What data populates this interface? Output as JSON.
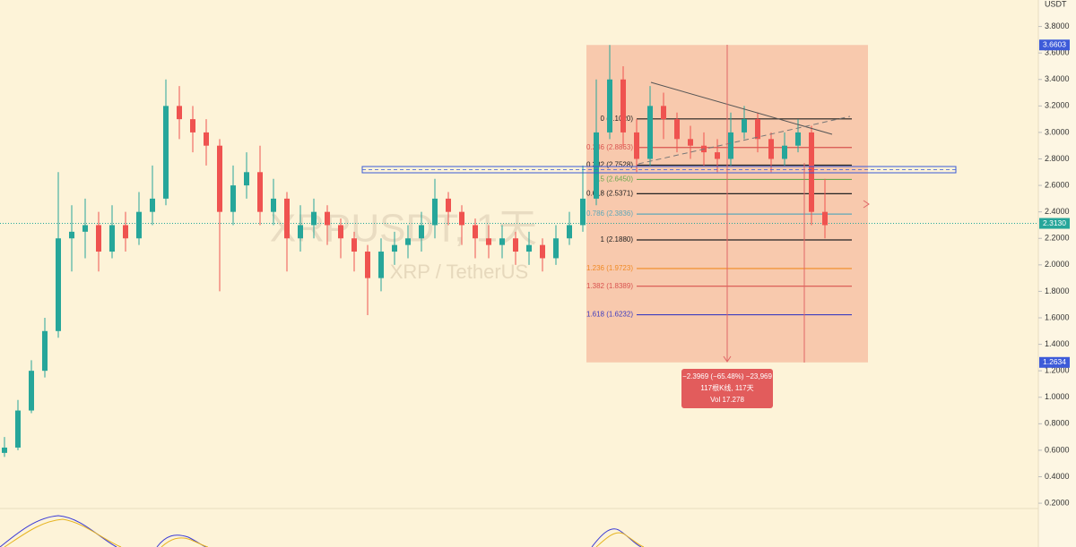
{
  "chart_data": {
    "type": "candlestick",
    "title": "XRPUSDT, 1天",
    "subtitle": "XRP / TetherUS",
    "axis_unit": "USDT",
    "open": [
      0.58,
      0.62,
      0.9,
      1.2,
      1.5,
      2.2,
      2.25,
      2.3,
      2.1,
      2.3,
      2.2,
      2.4,
      2.5,
      3.2,
      3.1,
      3.0,
      2.9,
      2.4,
      2.6,
      2.7,
      2.4,
      2.5,
      2.2,
      2.3,
      2.4,
      2.3,
      2.2,
      2.1,
      1.9,
      2.1,
      2.15,
      2.2,
      2.3,
      2.5,
      2.4,
      2.3,
      2.2,
      2.15,
      2.2,
      2.1,
      2.15,
      2.05,
      2.2,
      2.3,
      2.5,
      3.0,
      3.4,
      3.0,
      2.8,
      3.2,
      3.1,
      2.95,
      2.9,
      2.85,
      2.8,
      3.0,
      3.1,
      2.95,
      2.8,
      2.9,
      3.0,
      2.4
    ],
    "high": [
      0.7,
      0.98,
      1.28,
      1.6,
      2.7,
      2.45,
      2.5,
      2.4,
      2.45,
      2.4,
      2.55,
      2.75,
      3.4,
      3.35,
      3.2,
      3.1,
      2.95,
      2.75,
      2.85,
      2.9,
      2.65,
      2.55,
      2.45,
      2.5,
      2.45,
      2.35,
      2.25,
      2.15,
      2.2,
      2.25,
      2.3,
      2.4,
      2.65,
      2.55,
      2.45,
      2.35,
      2.3,
      2.3,
      2.25,
      2.25,
      2.2,
      2.3,
      2.4,
      2.75,
      3.4,
      3.66,
      3.5,
      3.1,
      3.35,
      3.3,
      3.15,
      3.05,
      3.0,
      2.95,
      3.15,
      3.2,
      3.15,
      3.0,
      3.0,
      3.1,
      3.05,
      2.65
    ],
    "low": [
      0.55,
      0.6,
      0.88,
      1.15,
      1.45,
      1.95,
      2.05,
      1.95,
      2.05,
      2.1,
      2.15,
      2.3,
      2.45,
      2.95,
      2.85,
      2.75,
      1.8,
      2.3,
      2.5,
      2.3,
      2.3,
      1.95,
      2.1,
      2.2,
      2.15,
      2.05,
      1.95,
      1.62,
      1.8,
      2.0,
      2.05,
      2.1,
      2.2,
      2.3,
      2.15,
      2.05,
      2.05,
      2.05,
      2.0,
      2.0,
      1.95,
      2.0,
      2.15,
      2.25,
      2.45,
      2.95,
      2.9,
      2.7,
      2.75,
      2.95,
      2.85,
      2.8,
      2.75,
      2.7,
      2.75,
      2.95,
      2.85,
      2.7,
      2.75,
      2.85,
      2.3,
      2.2
    ],
    "close": [
      0.62,
      0.9,
      1.2,
      1.5,
      2.2,
      2.25,
      2.3,
      2.1,
      2.3,
      2.2,
      2.4,
      2.5,
      3.2,
      3.1,
      3.0,
      2.9,
      2.4,
      2.6,
      2.7,
      2.4,
      2.5,
      2.2,
      2.3,
      2.4,
      2.3,
      2.2,
      2.1,
      1.9,
      2.1,
      2.15,
      2.2,
      2.3,
      2.5,
      2.4,
      2.3,
      2.2,
      2.15,
      2.2,
      2.1,
      2.15,
      2.05,
      2.2,
      2.3,
      2.5,
      3.0,
      3.4,
      3.0,
      2.8,
      3.2,
      3.1,
      2.95,
      2.9,
      2.85,
      2.8,
      3.0,
      3.1,
      2.95,
      2.8,
      2.9,
      3.0,
      2.4,
      2.3
    ],
    "up_color": "#26a69a",
    "down_color": "#ef5350",
    "ylim": [
      0.16,
      4.0
    ],
    "yticks": [
      {
        "value": 0.2,
        "label": "0.2000"
      },
      {
        "value": 0.4,
        "label": "0.4000"
      },
      {
        "value": 0.6,
        "label": "0.6000"
      },
      {
        "value": 0.8,
        "label": "0.8000"
      },
      {
        "value": 1.0,
        "label": "1.0000"
      },
      {
        "value": 1.2,
        "label": "1.2000"
      },
      {
        "value": 1.4,
        "label": "1.4000"
      },
      {
        "value": 1.6,
        "label": "1.6000"
      },
      {
        "value": 1.8,
        "label": "1.8000"
      },
      {
        "value": 2.0,
        "label": "2.0000"
      },
      {
        "value": 2.2,
        "label": "2.2000"
      },
      {
        "value": 2.4,
        "label": "2.4000"
      },
      {
        "value": 2.6,
        "label": "2.6000"
      },
      {
        "value": 2.8,
        "label": "2.8000"
      },
      {
        "value": 3.0,
        "label": "3.0000"
      },
      {
        "value": 3.2,
        "label": "3.2000"
      },
      {
        "value": 3.4,
        "label": "3.4000"
      },
      {
        "value": 3.6,
        "label": "3.6000"
      },
      {
        "value": 3.8,
        "label": "3.8000"
      }
    ],
    "last_price": {
      "value": 2.313,
      "label": "2.3130"
    },
    "range_high": {
      "value": 3.6603,
      "label": "3.6603"
    },
    "range_low": {
      "value": 1.2634,
      "label": "1.2634"
    },
    "fib_levels": [
      {
        "value": 3.102,
        "label": "0 (3.1020)",
        "color": "#222222"
      },
      {
        "value": 2.8863,
        "label": "0.236 (2.8863)",
        "color": "#d9534f"
      },
      {
        "value": 2.7528,
        "label": "0.382 (2.7528)",
        "color": "#222222"
      },
      {
        "value": 2.645,
        "label": "0.5 (2.6450)",
        "color": "#6aa84f"
      },
      {
        "value": 2.5371,
        "label": "0.618 (2.5371)",
        "color": "#222222"
      },
      {
        "value": 2.3836,
        "label": "0.786 (2.3836)",
        "color": "#5fa8b8"
      },
      {
        "value": 2.188,
        "label": "1 (2.1880)",
        "color": "#222222"
      },
      {
        "value": 1.9723,
        "label": "1.236 (1.9723)",
        "color": "#f08a24"
      },
      {
        "value": 1.8389,
        "label": "1.382 (1.8389)",
        "color": "#d9534f"
      },
      {
        "value": 1.6232,
        "label": "1.618 (1.6232)",
        "color": "#3d3dbf"
      }
    ],
    "measure": [
      "−2.3969 (−65.48%) −23,969",
      "117根K线, 117天",
      "Vol 17.278"
    ]
  }
}
